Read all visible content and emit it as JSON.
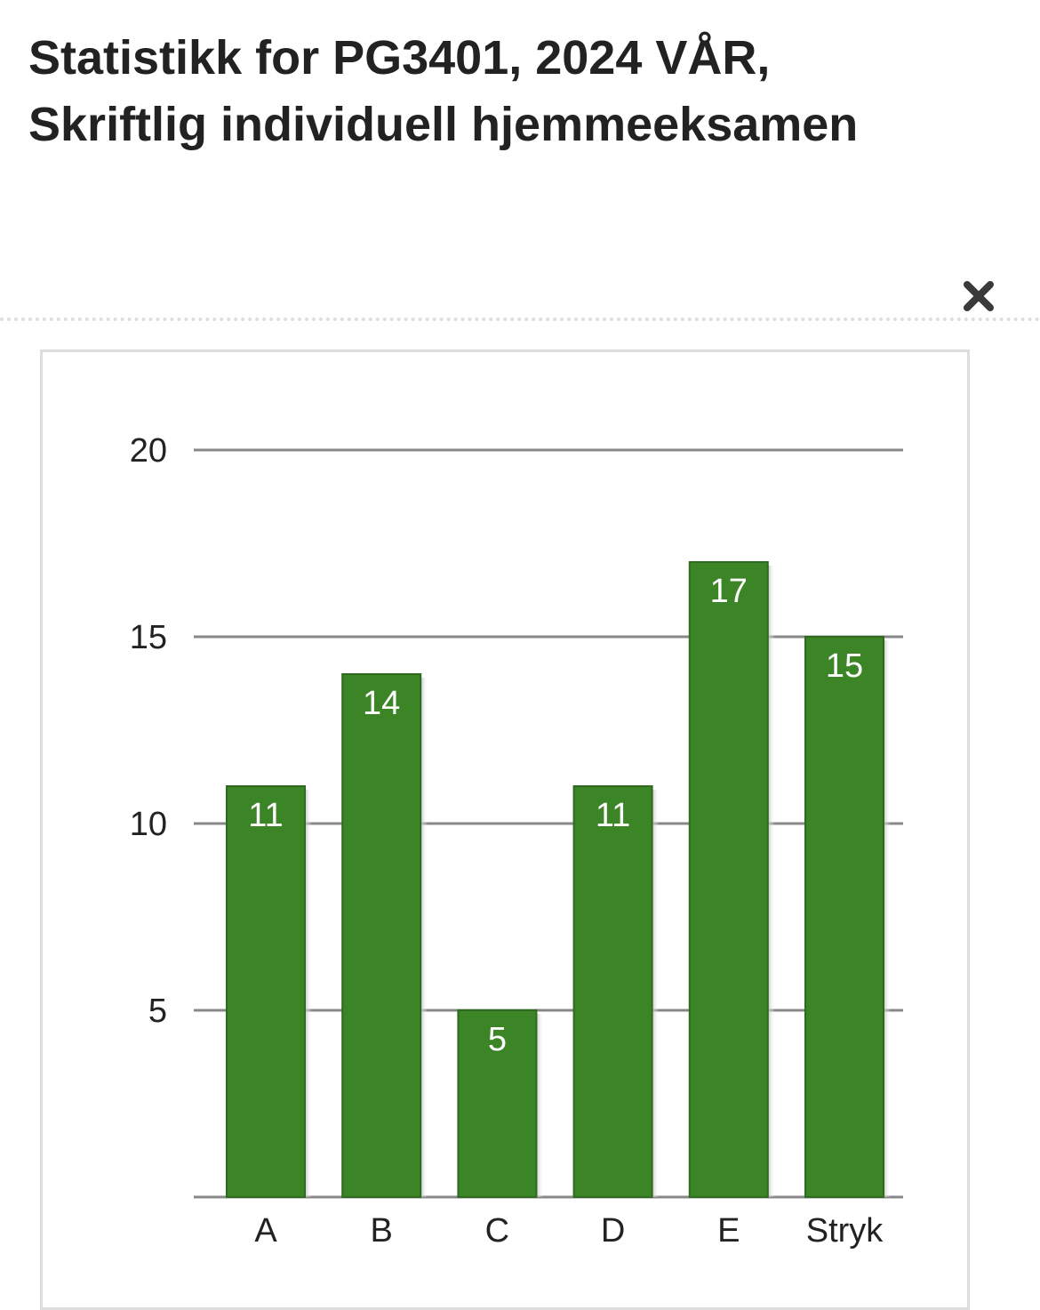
{
  "header": {
    "title": "Statistikk for PG3401, 2024 VÅR, Skriftlig individuell hjemmeeksamen",
    "close_icon": "close-icon"
  },
  "colors": {
    "bar_fill": "#3c8527",
    "bar_stroke": "#2f6b1e",
    "bar_shadow": "#c8c8c8",
    "gridline": "#888888",
    "title_text": "#222222"
  },
  "chart_data": {
    "type": "bar",
    "categories": [
      "A",
      "B",
      "C",
      "D",
      "E",
      "Stryk"
    ],
    "values": [
      11,
      14,
      5,
      11,
      17,
      15
    ],
    "yticks": [
      5,
      10,
      15,
      20
    ],
    "ylim": [
      0,
      20
    ],
    "grid": true,
    "data_labels": true,
    "xlabel": "",
    "ylabel": ""
  }
}
